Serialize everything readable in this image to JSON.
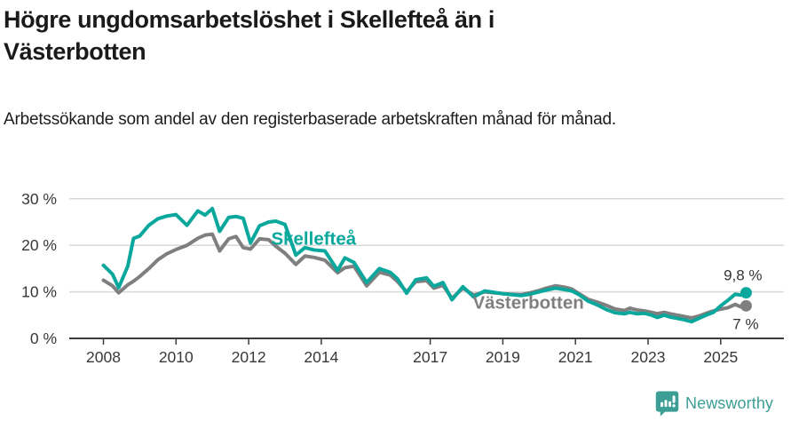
{
  "header": {
    "title": "Högre ungdomsarbetslöshet i Skellefteå än i Västerbotten",
    "subtitle": "Arbetssökande som andel av den registerbaserade arbetskraften månad för månad."
  },
  "footer": {
    "brand": "Newsworthy",
    "brand_color": "#3d9e96",
    "logo_icon": "newsworthy-speech-bubble-bar-chart-icon"
  },
  "chart_data": {
    "type": "line",
    "title": "Högre ungdomsarbetslöshet i Skellefteå än i Västerbotten",
    "xlabel": "",
    "ylabel": "",
    "ylim": [
      0,
      30
    ],
    "yticks": [
      0,
      10,
      20,
      30
    ],
    "ytick_suffix": " %",
    "xticks": [
      2008,
      2010,
      2012,
      2014,
      2017,
      2019,
      2021,
      2023,
      2025
    ],
    "grid": "horizontal",
    "legend_position": "inline-labels",
    "x": [
      2008.0,
      2008.25,
      2008.42,
      2008.67,
      2008.83,
      2009.0,
      2009.25,
      2009.5,
      2009.75,
      2010.0,
      2010.3,
      2010.6,
      2010.8,
      2011.0,
      2011.2,
      2011.45,
      2011.65,
      2011.85,
      2012.05,
      2012.3,
      2012.55,
      2012.75,
      2013.0,
      2013.3,
      2013.55,
      2013.8,
      2014.1,
      2014.45,
      2014.65,
      2014.9,
      2015.25,
      2015.6,
      2015.9,
      2016.1,
      2016.35,
      2016.6,
      2016.9,
      2017.1,
      2017.35,
      2017.6,
      2017.9,
      2018.2,
      2018.5,
      2018.75,
      2019.0,
      2019.25,
      2019.5,
      2019.75,
      2020.0,
      2020.2,
      2020.45,
      2020.7,
      2020.9,
      2021.1,
      2021.35,
      2021.6,
      2021.85,
      2022.1,
      2022.35,
      2022.5,
      2022.7,
      2022.9,
      2023.1,
      2023.25,
      2023.45,
      2023.6,
      2023.8,
      2024.0,
      2024.2,
      2024.4,
      2024.6,
      2024.8,
      2025.0,
      2025.2,
      2025.4,
      2025.55,
      2025.7
    ],
    "series": [
      {
        "name": "Västerbotten",
        "color": "#7f7f7f",
        "end_label": "7 %",
        "end_value": 7.0,
        "values": [
          12.5,
          11.3,
          9.8,
          11.5,
          12.3,
          13.3,
          15.0,
          16.9,
          18.2,
          19.1,
          20.0,
          21.5,
          22.2,
          22.4,
          18.8,
          21.4,
          21.9,
          19.5,
          19.2,
          21.4,
          21.2,
          19.8,
          18.3,
          15.9,
          17.7,
          17.4,
          16.8,
          14.1,
          15.2,
          15.5,
          11.3,
          14.2,
          13.6,
          12.2,
          10.0,
          12.2,
          12.4,
          10.8,
          11.4,
          8.6,
          10.8,
          9.3,
          10.0,
          9.8,
          9.6,
          9.5,
          9.4,
          9.8,
          10.3,
          10.8,
          11.3,
          11.0,
          10.6,
          9.6,
          8.4,
          7.8,
          7.1,
          6.3,
          6.0,
          6.5,
          6.1,
          5.9,
          5.6,
          5.3,
          5.6,
          5.3,
          5.0,
          4.7,
          4.4,
          4.8,
          5.4,
          5.9,
          6.3,
          6.6,
          7.3,
          6.8,
          7.0
        ]
      },
      {
        "name": "Skellefteå",
        "color": "#0aa79d",
        "end_label": "9,8 %",
        "end_value": 9.8,
        "values": [
          15.7,
          13.8,
          10.9,
          15.5,
          21.5,
          22.0,
          24.3,
          25.7,
          26.3,
          26.6,
          24.3,
          27.4,
          26.5,
          27.9,
          23.0,
          26.0,
          26.2,
          25.8,
          20.5,
          24.2,
          25.0,
          25.2,
          24.5,
          17.9,
          19.5,
          19.0,
          18.8,
          14.6,
          17.3,
          16.3,
          12.0,
          15.0,
          14.2,
          12.8,
          9.7,
          12.6,
          13.0,
          11.2,
          12.0,
          8.3,
          11.1,
          8.9,
          10.2,
          9.9,
          9.6,
          9.4,
          9.2,
          9.5,
          10.0,
          10.4,
          10.8,
          10.5,
          10.2,
          9.4,
          8.0,
          7.2,
          6.2,
          5.5,
          5.3,
          5.6,
          5.3,
          5.4,
          5.0,
          4.5,
          5.0,
          4.6,
          4.3,
          4.0,
          3.6,
          4.3,
          5.0,
          5.6,
          7.0,
          8.2,
          9.5,
          9.3,
          9.8
        ]
      }
    ],
    "annotations": [
      {
        "text": "Skellefteå",
        "x": 2012.62,
        "y": 20.1,
        "color": "#0aa79d",
        "bold": true,
        "size": 20.5,
        "anchor": "start"
      },
      {
        "text": "Västerbotten",
        "x": 2018.17,
        "y": 6.4,
        "color": "#7f7f7f",
        "bold": true,
        "size": 20.5,
        "anchor": "start"
      },
      {
        "text": "9,8 %",
        "x": 2025.08,
        "y": 12.5,
        "color": "#333333",
        "bold": false,
        "size": 17,
        "anchor": "start"
      },
      {
        "text": "7 %",
        "x": 2025.33,
        "y": 2.0,
        "color": "#333333",
        "bold": false,
        "size": 17,
        "anchor": "start"
      }
    ],
    "colors": {
      "gridline": "#d9d9d9",
      "axis": "#3c3c3c",
      "tick_text": "#383838"
    }
  }
}
